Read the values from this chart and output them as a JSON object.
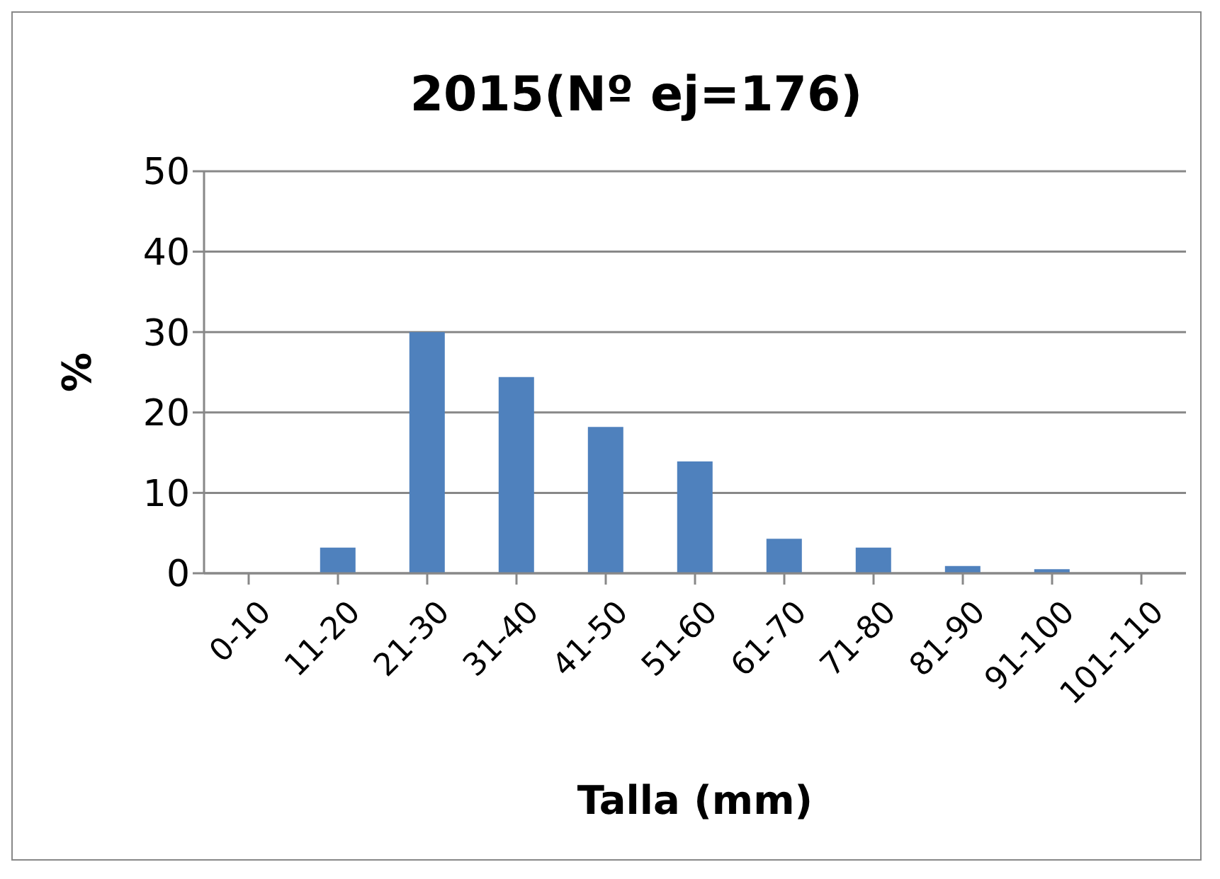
{
  "chart_data": {
    "type": "bar",
    "title": "2015(Nº ej=176)",
    "xlabel": "Talla (mm)",
    "ylabel": "%",
    "categories": [
      "0-10",
      "11-20",
      "21-30",
      "31-40",
      "41-50",
      "51-60",
      "61-70",
      "71-80",
      "81-90",
      "91-100",
      "101-110"
    ],
    "values": [
      0,
      3.2,
      30,
      24.4,
      18.2,
      13.9,
      4.3,
      3.2,
      0.9,
      0.5,
      0
    ],
    "color": "#4f81bd",
    "ylim": [
      0,
      50
    ],
    "yticks": [
      0,
      10,
      20,
      30,
      40,
      50
    ],
    "grid": "y"
  }
}
